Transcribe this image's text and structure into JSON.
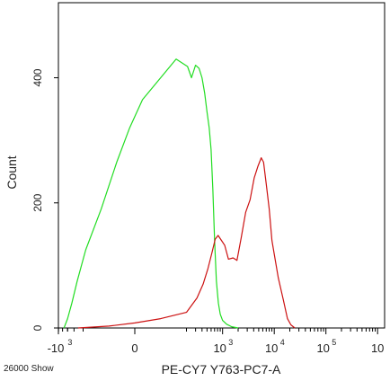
{
  "chart_data": {
    "type": "line",
    "title": "",
    "xlabel": "PE-CY7 Y763-PC7-A",
    "ylabel": "Count",
    "ylim": [
      0,
      520
    ],
    "x_scale": "biexponential",
    "x_tick_labels": [
      {
        "base": "-10",
        "exp": "3"
      },
      {
        "base": "0",
        "exp": ""
      },
      {
        "base": "10",
        "exp": "3"
      },
      {
        "base": "10",
        "exp": "4"
      },
      {
        "base": "10",
        "exp": "5"
      },
      {
        "base": "10",
        "exp": ""
      }
    ],
    "y_ticks": [
      0,
      200,
      400
    ],
    "grid": false,
    "corner_note": "26000 Show",
    "series": [
      {
        "color": "#22dd22",
        "points": [
          [
            -470,
            0
          ],
          [
            -400,
            15
          ],
          [
            -330,
            40
          ],
          [
            -260,
            75
          ],
          [
            -190,
            125
          ],
          [
            -130,
            190
          ],
          [
            -70,
            265
          ],
          [
            -20,
            320
          ],
          [
            30,
            365
          ],
          [
            80,
            390
          ],
          [
            120,
            410
          ],
          [
            160,
            430
          ],
          [
            210,
            418
          ],
          [
            250,
            400
          ],
          [
            300,
            420
          ],
          [
            350,
            415
          ],
          [
            400,
            400
          ],
          [
            450,
            375
          ],
          [
            500,
            345
          ],
          [
            550,
            320
          ],
          [
            600,
            285
          ],
          [
            650,
            220
          ],
          [
            700,
            140
          ],
          [
            760,
            75
          ],
          [
            830,
            40
          ],
          [
            900,
            22
          ],
          [
            1000,
            12
          ],
          [
            1200,
            6
          ],
          [
            1500,
            2
          ],
          [
            2000,
            0
          ]
        ]
      },
      {
        "color": "#cc1111",
        "points": [
          [
            -250,
            0
          ],
          [
            -100,
            3
          ],
          [
            0,
            8
          ],
          [
            100,
            15
          ],
          [
            200,
            25
          ],
          [
            320,
            48
          ],
          [
            420,
            70
          ],
          [
            520,
            95
          ],
          [
            620,
            120
          ],
          [
            720,
            142
          ],
          [
            820,
            148
          ],
          [
            950,
            140
          ],
          [
            1100,
            132
          ],
          [
            1300,
            110
          ],
          [
            1600,
            112
          ],
          [
            1900,
            108
          ],
          [
            2300,
            145
          ],
          [
            2800,
            185
          ],
          [
            3400,
            205
          ],
          [
            4100,
            240
          ],
          [
            4800,
            258
          ],
          [
            5600,
            272
          ],
          [
            6200,
            265
          ],
          [
            7000,
            230
          ],
          [
            8000,
            190
          ],
          [
            9000,
            140
          ],
          [
            10000,
            118
          ],
          [
            12000,
            80
          ],
          [
            15000,
            45
          ],
          [
            18000,
            15
          ],
          [
            21000,
            5
          ],
          [
            25000,
            0
          ]
        ]
      }
    ]
  }
}
